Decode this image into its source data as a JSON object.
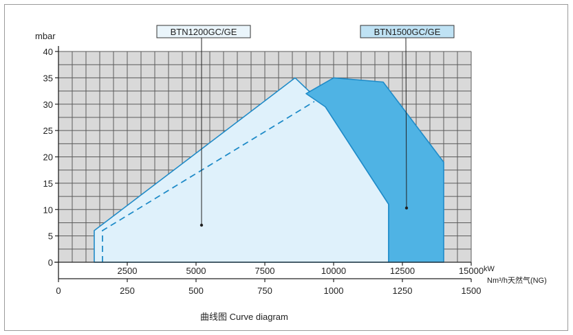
{
  "caption": "曲线图   Curve diagram",
  "chart_data": {
    "type": "area",
    "ylabel": "mbar",
    "xlabel_primary": "kW",
    "xlabel_secondary": "Nm³/h天然气(NG)",
    "xlim": [
      0,
      15000
    ],
    "ylim": [
      0,
      40
    ],
    "secondary_xlim": [
      0,
      1500
    ],
    "grid": true,
    "x_ticks": [
      "2500",
      "5000",
      "7500",
      "10000",
      "12500",
      "15000"
    ],
    "x_tick_values": [
      2500,
      5000,
      7500,
      10000,
      12500,
      15000
    ],
    "secondary_x_ticks": [
      "0",
      "250",
      "500",
      "750",
      "1000",
      "1250",
      "1500"
    ],
    "secondary_x_tick_values": [
      0,
      250,
      500,
      750,
      1000,
      1250,
      1500
    ],
    "y_ticks": [
      "0",
      "5",
      "10",
      "15",
      "20",
      "25",
      "30",
      "35",
      "40"
    ],
    "y_tick_values": [
      0,
      5,
      10,
      15,
      20,
      25,
      30,
      35,
      40
    ],
    "colors": {
      "grid": "#5a5a5a",
      "plot_bg": "#d9d9d9",
      "outline": "#1f8bc8",
      "light_fill": "#dff1fb",
      "dark_fill": "#4fb3e4",
      "label_bg_light": "#eaf5fb",
      "label_bg_dark": "#bfe2f4"
    },
    "series": [
      {
        "name": "BTN1200GC/GE",
        "style": "light",
        "points": [
          [
            1300,
            0
          ],
          [
            1300,
            6
          ],
          [
            8600,
            35
          ],
          [
            9700,
            29.5
          ],
          [
            12000,
            11
          ],
          [
            12000,
            0
          ]
        ],
        "min_pressure_dashed": [
          [
            1600,
            0
          ],
          [
            1600,
            6
          ],
          [
            9300,
            30.5
          ]
        ]
      },
      {
        "name": "BTN1500GC/GE",
        "style": "dark",
        "points": [
          [
            12000,
            0
          ],
          [
            12000,
            11
          ],
          [
            9700,
            29.5
          ],
          [
            9000,
            32
          ],
          [
            10000,
            35
          ],
          [
            11800,
            34.2
          ],
          [
            14000,
            19
          ],
          [
            14000,
            0
          ]
        ]
      }
    ]
  }
}
